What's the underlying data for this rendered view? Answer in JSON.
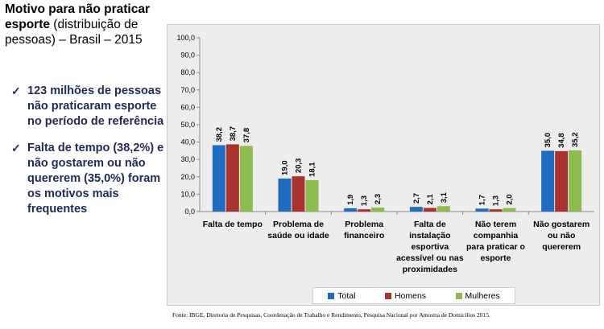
{
  "title": {
    "bold": "Motivo para não praticar esporte",
    "rest": " (distribuição de pessoas) – Brasil – 2015"
  },
  "bullets": [
    {
      "text": "123 milhões de pessoas não praticaram esporte no período de referência"
    },
    {
      "text": "Falta de tempo (38,2%) e não gostarem ou não quererem (35,0%) foram os motivos mais frequentes"
    }
  ],
  "source": "Fonte: IBGE, Diretoria de Pesquisas, Coordenação de Trabalho e Rendimento, Pesquisa Nacional por Amostra de Domicílios 2015.",
  "chart_data": {
    "type": "bar",
    "categories": [
      [
        "Falta de tempo"
      ],
      [
        "Problema de",
        "saúde ou idade"
      ],
      [
        "Problema",
        "financeiro"
      ],
      [
        "Falta de",
        "instalação",
        "esportiva",
        "acessível ou nas",
        "proximidades"
      ],
      [
        "Não terem",
        "companhia",
        "para praticar o",
        "esporte"
      ],
      [
        "Não gostarem",
        "ou não",
        "quererem"
      ]
    ],
    "series": [
      {
        "name": "Total",
        "color": "#1f6cc1",
        "values": [
          38.2,
          19.0,
          1.9,
          2.7,
          1.7,
          35.0
        ],
        "labels": [
          "38,2",
          "19,0",
          "1,9",
          "2,7",
          "1,7",
          "35,0"
        ]
      },
      {
        "name": "Homens",
        "color": "#a8322e",
        "values": [
          38.7,
          20.3,
          1.3,
          2.1,
          1.3,
          34.8
        ],
        "labels": [
          "38,7",
          "20,3",
          "1,3",
          "2,1",
          "1,3",
          "34,8"
        ]
      },
      {
        "name": "Mulheres",
        "color": "#8cbc4f",
        "values": [
          37.8,
          18.1,
          2.3,
          3.1,
          2.0,
          35.2
        ],
        "labels": [
          "37,8",
          "18,1",
          "2,3",
          "3,1",
          "2,0",
          "35,2"
        ]
      }
    ],
    "ylim": [
      0,
      100
    ],
    "yticks": [
      0,
      10,
      20,
      30,
      40,
      50,
      60,
      70,
      80,
      90,
      100
    ],
    "ytick_labels": [
      "0,0",
      "10,0",
      "20,0",
      "30,0",
      "40,0",
      "50,0",
      "60,0",
      "70,0",
      "80,0",
      "90,0",
      "100,0"
    ],
    "legend_position": "bottom",
    "grid": false
  }
}
